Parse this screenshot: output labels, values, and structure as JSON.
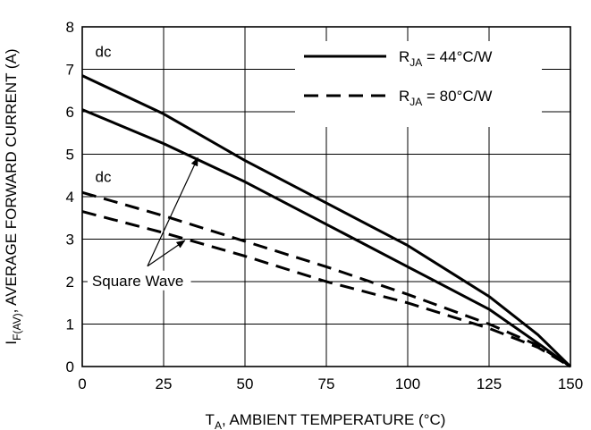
{
  "chart_data": {
    "type": "line",
    "xlabel": {
      "main": "T",
      "sub": "A",
      "rest": ", AMBIENT TEMPERATURE (°C)"
    },
    "ylabel": {
      "main": "I",
      "sub": "F(AV)",
      "rest": ", AVERAGE FORWARD CURRENT (A)"
    },
    "xlim": [
      0,
      150
    ],
    "ylim": [
      0,
      8
    ],
    "xticks": [
      "0",
      "25",
      "50",
      "75",
      "100",
      "125",
      "150"
    ],
    "yticks": [
      "0",
      "1",
      "2",
      "3",
      "4",
      "5",
      "6",
      "7",
      "8"
    ],
    "grid": true,
    "legend": {
      "placement": "top-right",
      "entries": [
        {
          "style": "solid",
          "label_main": "R",
          "label_sub": "JA",
          "label_rest": " = 44°C/W"
        },
        {
          "style": "dashed",
          "label_main": "R",
          "label_sub": "JA",
          "label_rest": " = 80°C/W"
        }
      ]
    },
    "series": [
      {
        "style": "solid",
        "x": [
          0,
          25,
          50,
          75,
          100,
          125,
          140,
          150
        ],
        "y": [
          6.85,
          5.95,
          4.85,
          3.85,
          2.85,
          1.65,
          0.75,
          0
        ]
      },
      {
        "style": "solid",
        "x": [
          0,
          25,
          50,
          75,
          100,
          125,
          140,
          150
        ],
        "y": [
          6.05,
          5.25,
          4.35,
          3.35,
          2.35,
          1.35,
          0.55,
          0
        ]
      },
      {
        "style": "dashed",
        "x": [
          0,
          25,
          50,
          75,
          100,
          125,
          140,
          150
        ],
        "y": [
          4.1,
          3.55,
          2.95,
          2.35,
          1.7,
          1.0,
          0.5,
          0
        ]
      },
      {
        "style": "dashed",
        "x": [
          0,
          25,
          50,
          75,
          100,
          125,
          140,
          150
        ],
        "y": [
          3.65,
          3.15,
          2.6,
          2.0,
          1.5,
          0.9,
          0.45,
          0
        ]
      }
    ],
    "annotations": [
      {
        "text": "dc",
        "x": 4,
        "y": 7.3
      },
      {
        "text": "dc",
        "x": 4,
        "y": 4.35
      },
      {
        "text": "Square Wave",
        "x": 3,
        "y": 1.9
      }
    ]
  }
}
